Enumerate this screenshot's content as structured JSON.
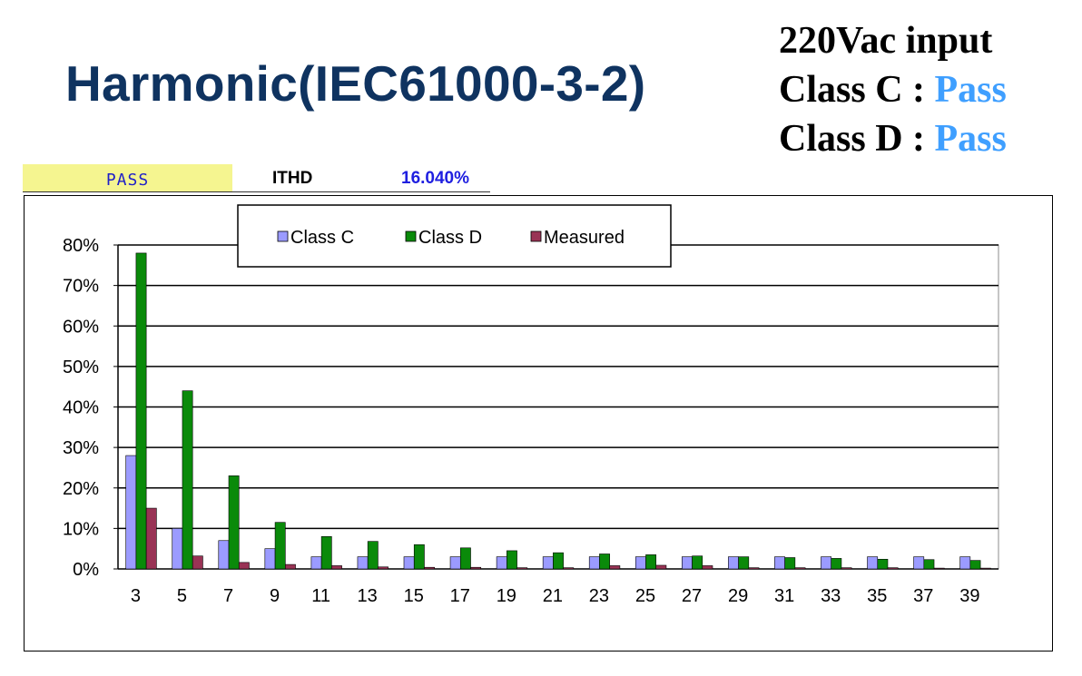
{
  "header": {
    "title": "Harmonic(IEC61000-3-2)",
    "input_label": "220Vac input",
    "class_c_label": "Class C : ",
    "class_c_result": "Pass",
    "class_d_label": "Class D : ",
    "class_d_result": "Pass"
  },
  "status": {
    "result": "PASS",
    "ithd_label": "ITHD",
    "ithd_value": "16.040%"
  },
  "colors": {
    "title": "#0f3360",
    "pass_text": "#3f9fff",
    "class_c": "#9b9bff",
    "class_d": "#0a8a0a",
    "measured": "#993355"
  },
  "chart_data": {
    "type": "bar",
    "categories": [
      "3",
      "5",
      "7",
      "9",
      "11",
      "13",
      "15",
      "17",
      "19",
      "21",
      "23",
      "25",
      "27",
      "29",
      "31",
      "33",
      "35",
      "37",
      "39"
    ],
    "series": [
      {
        "name": "Class C",
        "values": [
          28,
          10,
          7,
          5,
          3,
          3,
          3,
          3,
          3,
          3,
          3,
          3,
          3,
          3,
          3,
          3,
          3,
          3,
          3
        ]
      },
      {
        "name": "Class D",
        "values": [
          78,
          44,
          23,
          11.5,
          8,
          6.8,
          6,
          5.2,
          4.5,
          4,
          3.7,
          3.5,
          3.2,
          3,
          2.8,
          2.6,
          2.4,
          2.3,
          2.1
        ]
      },
      {
        "name": "Measured",
        "values": [
          15,
          3.2,
          1.6,
          1.1,
          0.8,
          0.5,
          0.4,
          0.4,
          0.3,
          0.3,
          0.8,
          0.9,
          0.8,
          0.3,
          0.3,
          0.3,
          0.3,
          0.2,
          0.2
        ]
      }
    ],
    "y_ticks": [
      "0%",
      "10%",
      "20%",
      "30%",
      "40%",
      "50%",
      "60%",
      "70%",
      "80%"
    ],
    "ylim": [
      0,
      80
    ],
    "grid": true,
    "legend_position": "top-center",
    "title": "",
    "xlabel": "",
    "ylabel": ""
  }
}
